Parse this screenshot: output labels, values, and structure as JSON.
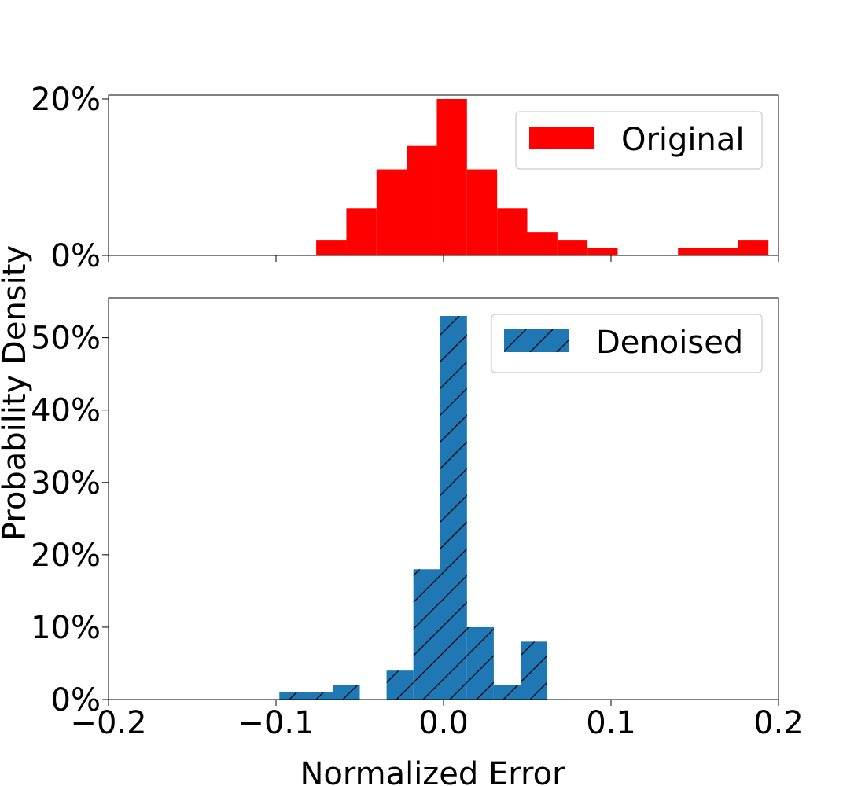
{
  "colors": {
    "original": "#ff0000",
    "denoised": "#1f77b4",
    "hatch": "#000000",
    "axes": "#000000",
    "legend_border": "#cccccc"
  },
  "chart_data": [
    {
      "type": "bar",
      "subtype": "histogram",
      "panel": "top",
      "xlim": [
        -0.2,
        0.2
      ],
      "ylim": [
        0,
        0.205
      ],
      "yticks": [
        0,
        0.2
      ],
      "ytick_labels": [
        "0%",
        "20%"
      ],
      "xtick_labels_shown": false,
      "legend_placement": "upper-right",
      "legend": [
        "Original"
      ],
      "grid": false,
      "series": [
        {
          "name": "Original",
          "color": "#ff0000",
          "hatch": false,
          "bins": [
            {
              "x0": -0.076,
              "x1": -0.058,
              "value": 0.02
            },
            {
              "x0": -0.058,
              "x1": -0.04,
              "value": 0.06
            },
            {
              "x0": -0.04,
              "x1": -0.022,
              "value": 0.11
            },
            {
              "x0": -0.022,
              "x1": -0.004,
              "value": 0.14
            },
            {
              "x0": -0.004,
              "x1": 0.014,
              "value": 0.2
            },
            {
              "x0": 0.014,
              "x1": 0.032,
              "value": 0.11
            },
            {
              "x0": 0.032,
              "x1": 0.05,
              "value": 0.06
            },
            {
              "x0": 0.05,
              "x1": 0.068,
              "value": 0.03
            },
            {
              "x0": 0.068,
              "x1": 0.086,
              "value": 0.02
            },
            {
              "x0": 0.086,
              "x1": 0.104,
              "value": 0.01
            },
            {
              "x0": 0.14,
              "x1": 0.176,
              "value": 0.01
            },
            {
              "x0": 0.176,
              "x1": 0.194,
              "value": 0.02
            }
          ]
        }
      ]
    },
    {
      "type": "bar",
      "subtype": "histogram",
      "panel": "bottom",
      "xlim": [
        -0.2,
        0.2
      ],
      "ylim": [
        0,
        0.555
      ],
      "xticks": [
        -0.2,
        -0.1,
        0.0,
        0.1,
        0.2
      ],
      "xtick_labels": [
        "−0.2",
        "−0.1",
        "0.0",
        "0.1",
        "0.2"
      ],
      "yticks": [
        0,
        0.1,
        0.2,
        0.3,
        0.4,
        0.5
      ],
      "ytick_labels": [
        "0%",
        "10%",
        "20%",
        "30%",
        "40%",
        "50%"
      ],
      "legend_placement": "upper-right",
      "legend": [
        "Denoised"
      ],
      "grid": false,
      "series": [
        {
          "name": "Denoised",
          "color": "#1f77b4",
          "hatch": true,
          "bins": [
            {
              "x0": -0.098,
              "x1": -0.066,
              "value": 0.01
            },
            {
              "x0": -0.066,
              "x1": -0.05,
              "value": 0.02
            },
            {
              "x0": -0.034,
              "x1": -0.018,
              "value": 0.04
            },
            {
              "x0": -0.018,
              "x1": -0.002,
              "value": 0.18
            },
            {
              "x0": -0.002,
              "x1": 0.014,
              "value": 0.53
            },
            {
              "x0": 0.014,
              "x1": 0.03,
              "value": 0.1
            },
            {
              "x0": 0.03,
              "x1": 0.046,
              "value": 0.02
            },
            {
              "x0": 0.046,
              "x1": 0.062,
              "value": 0.08
            }
          ]
        }
      ]
    }
  ],
  "labels": {
    "xlabel": "Normalized Error",
    "ylabel": "Probability Density"
  }
}
